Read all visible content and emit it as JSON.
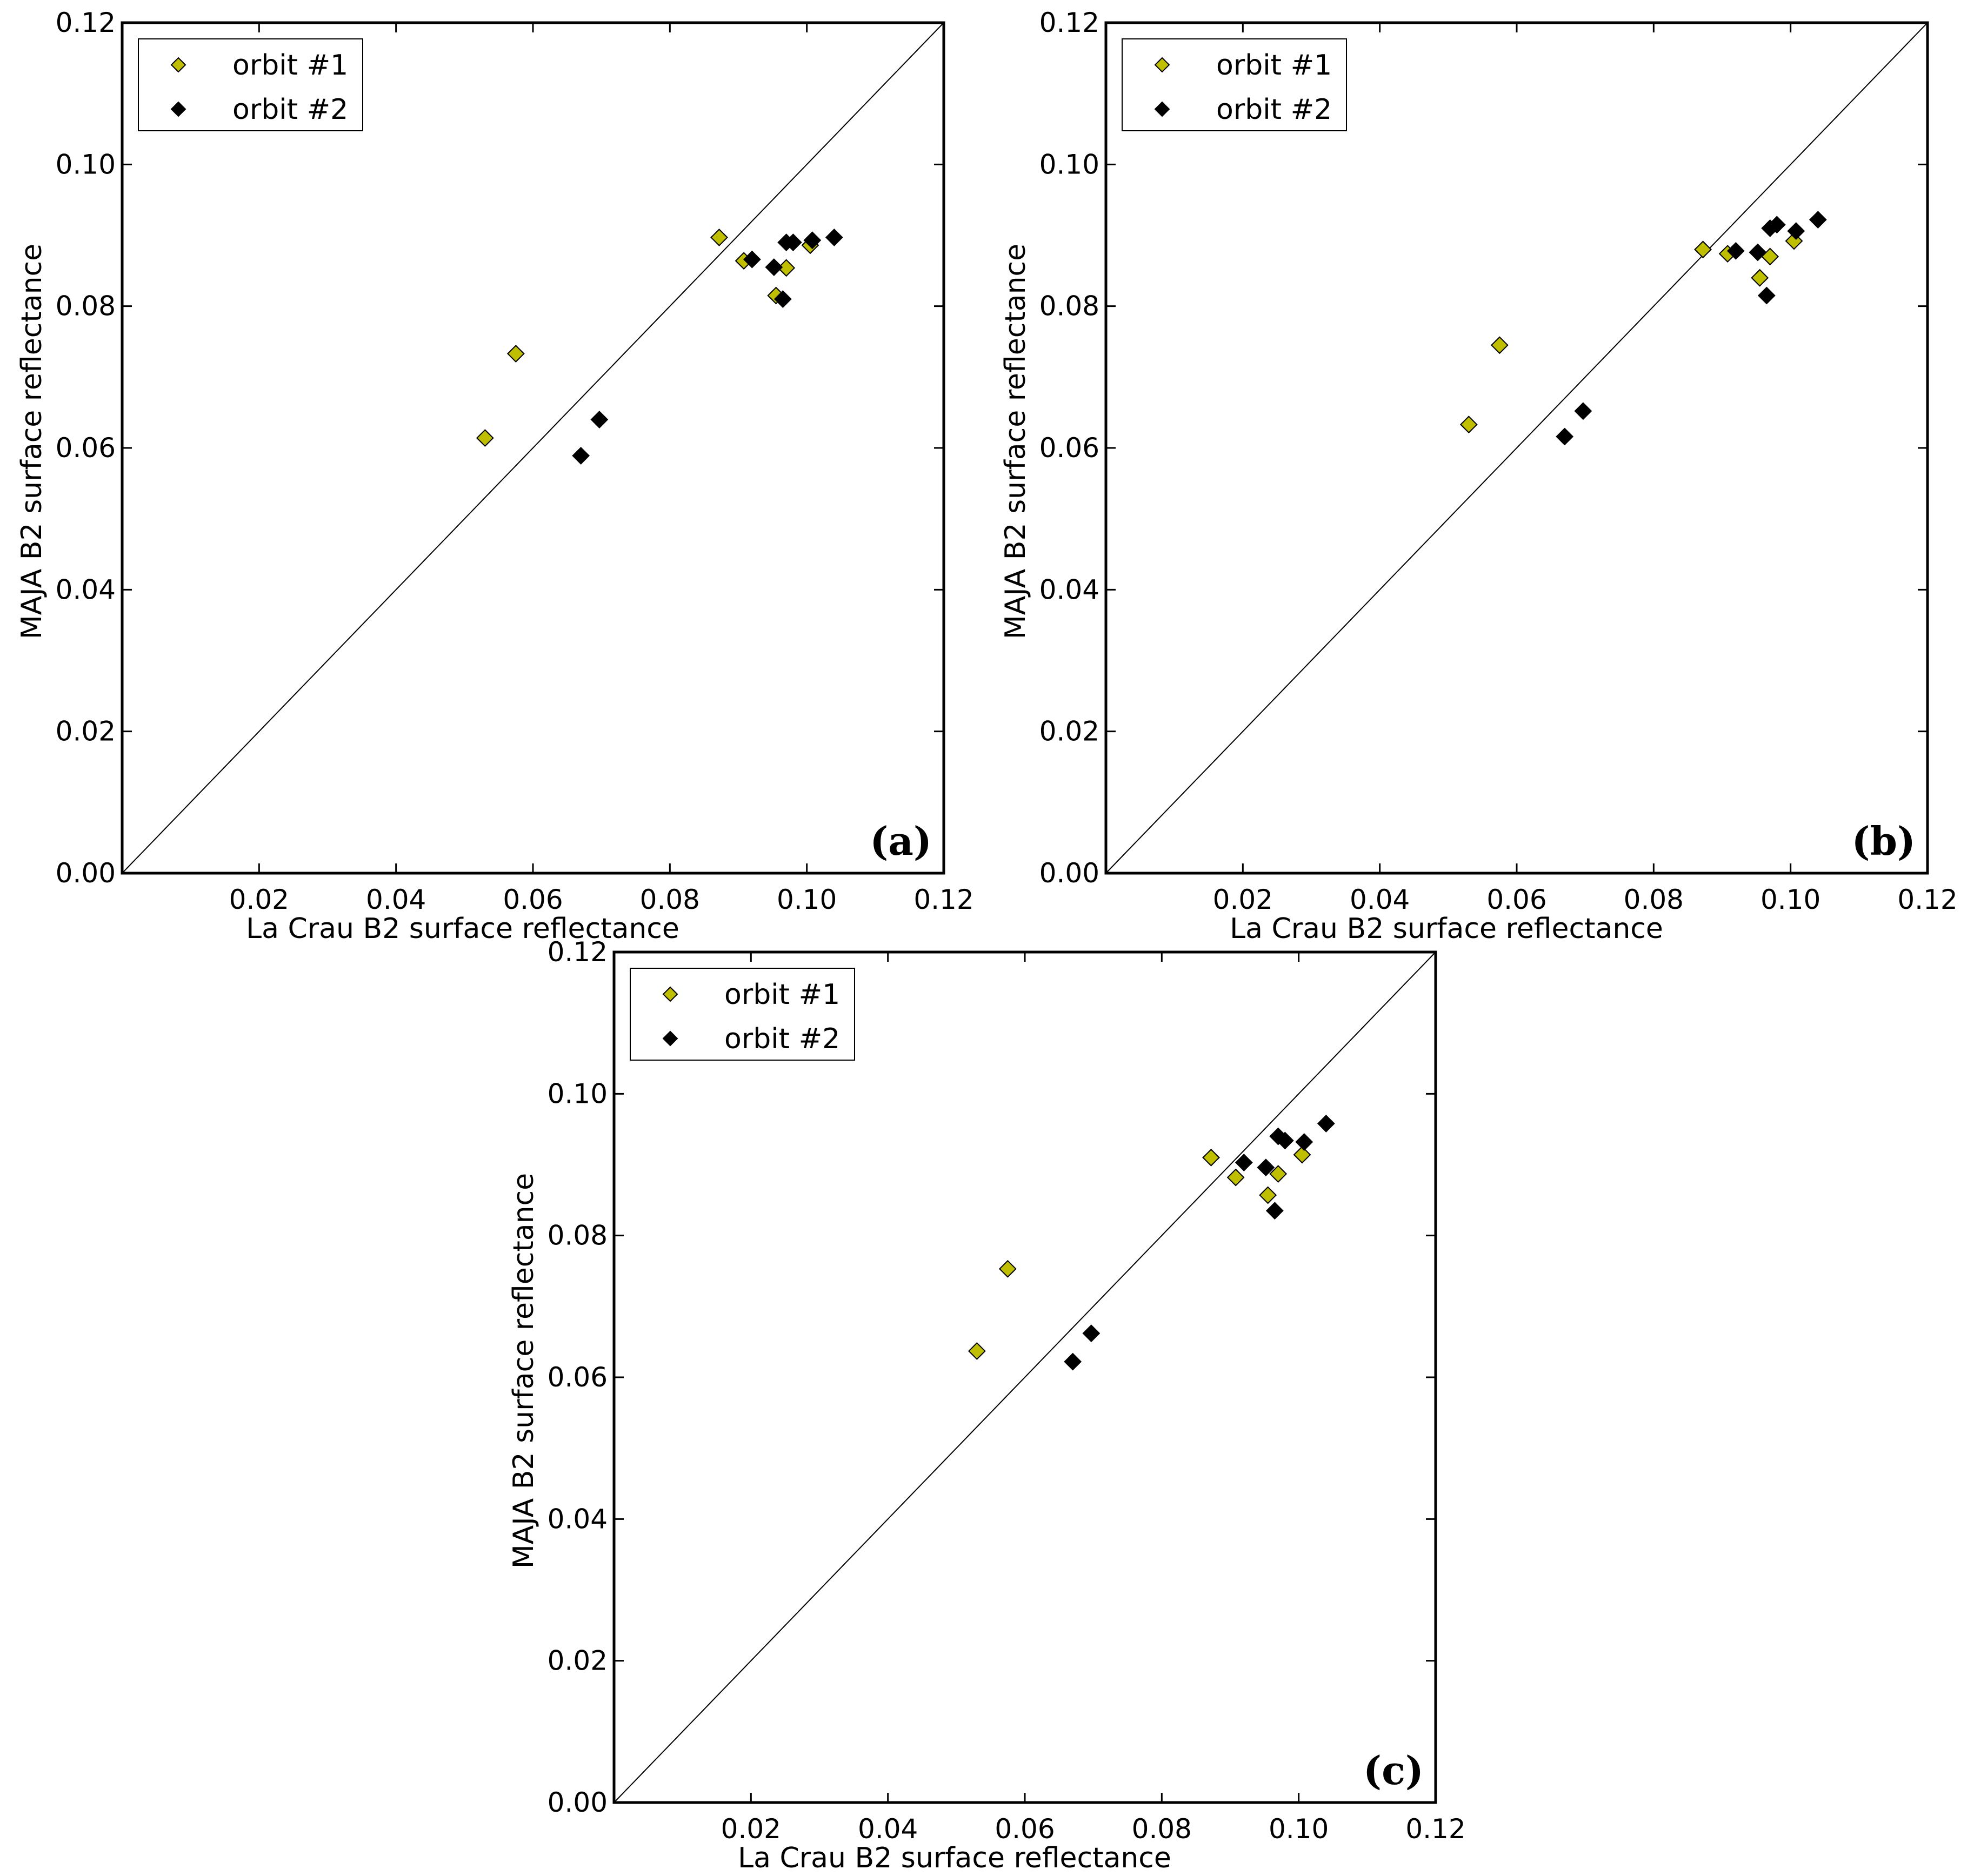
{
  "chart_data": [
    {
      "type": "scatter",
      "panel_label": "(a)",
      "xlabel": "La Crau B2 surface reflectance",
      "ylabel": "MAJA B2 surface reflectance",
      "xlim": [
        0.0,
        0.12
      ],
      "ylim": [
        0.0,
        0.12
      ],
      "xticks": [
        "0.02",
        "0.04",
        "0.06",
        "0.08",
        "0.10",
        "0.12"
      ],
      "yticks": [
        "0.00",
        "0.02",
        "0.04",
        "0.06",
        "0.08",
        "0.10",
        "0.12"
      ],
      "reference_line": "1:1",
      "legend_position": "top-left",
      "series": [
        {
          "name": "orbit #1",
          "color": "#bfbf00",
          "x": [
            0.053,
            0.0575,
            0.0872,
            0.0908,
            0.0955,
            0.097,
            0.1005
          ],
          "y": [
            0.0614,
            0.0733,
            0.0897,
            0.0864,
            0.0815,
            0.0854,
            0.0886
          ]
        },
        {
          "name": "orbit #2",
          "color": "#000000",
          "x": [
            0.067,
            0.0697,
            0.092,
            0.0952,
            0.0965,
            0.097,
            0.098,
            0.1008,
            0.104
          ],
          "y": [
            0.0589,
            0.064,
            0.0866,
            0.0855,
            0.081,
            0.089,
            0.089,
            0.0893,
            0.0897
          ]
        }
      ]
    },
    {
      "type": "scatter",
      "panel_label": "(b)",
      "xlabel": "La Crau B2 surface reflectance",
      "ylabel": "MAJA B2 surface reflectance",
      "xlim": [
        0.0,
        0.12
      ],
      "ylim": [
        0.0,
        0.12
      ],
      "xticks": [
        "0.02",
        "0.04",
        "0.06",
        "0.08",
        "0.10",
        "0.12"
      ],
      "yticks": [
        "0.00",
        "0.02",
        "0.04",
        "0.06",
        "0.08",
        "0.10",
        "0.12"
      ],
      "reference_line": "1:1",
      "legend_position": "top-left",
      "series": [
        {
          "name": "orbit #1",
          "color": "#bfbf00",
          "x": [
            0.053,
            0.0575,
            0.0872,
            0.0908,
            0.0955,
            0.097,
            0.1005
          ],
          "y": [
            0.0633,
            0.0745,
            0.088,
            0.0874,
            0.084,
            0.087,
            0.0892
          ]
        },
        {
          "name": "orbit #2",
          "color": "#000000",
          "x": [
            0.067,
            0.0697,
            0.092,
            0.0952,
            0.0965,
            0.097,
            0.098,
            0.1008,
            0.104
          ],
          "y": [
            0.0616,
            0.0652,
            0.0878,
            0.0876,
            0.0815,
            0.091,
            0.0915,
            0.0906,
            0.0922
          ]
        }
      ]
    },
    {
      "type": "scatter",
      "panel_label": "(c)",
      "xlabel": "La Crau B2 surface reflectance",
      "ylabel": "MAJA B2 surface reflectance",
      "xlim": [
        0.0,
        0.12
      ],
      "ylim": [
        0.0,
        0.12
      ],
      "xticks": [
        "0.02",
        "0.04",
        "0.06",
        "0.08",
        "0.10",
        "0.12"
      ],
      "yticks": [
        "0.00",
        "0.02",
        "0.04",
        "0.06",
        "0.08",
        "0.10",
        "0.12"
      ],
      "reference_line": "1:1",
      "legend_position": "top-left",
      "series": [
        {
          "name": "orbit #1",
          "color": "#bfbf00",
          "x": [
            0.053,
            0.0575,
            0.0872,
            0.0908,
            0.0955,
            0.097,
            0.1005
          ],
          "y": [
            0.0637,
            0.0753,
            0.091,
            0.0882,
            0.0857,
            0.0887,
            0.0914
          ]
        },
        {
          "name": "orbit #2",
          "color": "#000000",
          "x": [
            0.067,
            0.0697,
            0.092,
            0.0952,
            0.0965,
            0.097,
            0.098,
            0.1008,
            0.104
          ],
          "y": [
            0.0622,
            0.0662,
            0.0903,
            0.0896,
            0.0835,
            0.094,
            0.0934,
            0.0932,
            0.0958
          ]
        }
      ]
    }
  ]
}
